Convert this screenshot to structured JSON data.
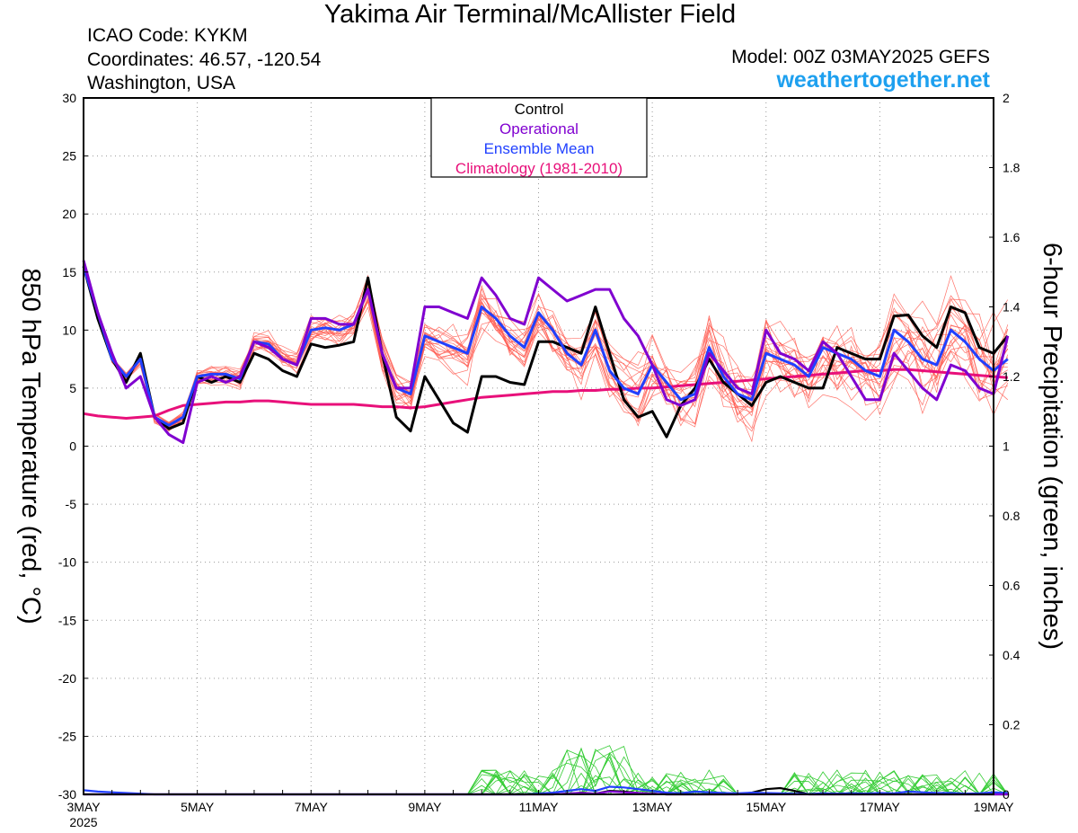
{
  "header": {
    "title": "Yakima Air Terminal/McAllister Field",
    "icao": "ICAO Code: KYKM",
    "coordinates": "Coordinates: 46.57, -120.54",
    "location": "Washington, USA",
    "model": "Model: 00Z 03MAY2025 GEFS",
    "site": "weathertogether.net"
  },
  "colors": {
    "control": "#000000",
    "operational": "#8000d0",
    "ensemble_mean": "#2040ff",
    "climatology": "#e8107a",
    "members": "#ff5a50",
    "precip": "#33cc33",
    "site": "#1ea0ef"
  },
  "chart_data": {
    "type": "line",
    "title": "Yakima Air Terminal/McAllister Field",
    "ylabel": "850 hPa Temperature (red, °C)",
    "y2label": "6-hour Precipitation (green, inches)",
    "ylim": [
      -30,
      30
    ],
    "y2lim": [
      0,
      2
    ],
    "x_range_hours": [
      0,
      384
    ],
    "x_step_hours": 6,
    "yticks": [
      30,
      25,
      20,
      15,
      10,
      5,
      0,
      -5,
      -10,
      -15,
      -20,
      -25,
      -30
    ],
    "y2ticks": [
      "2",
      "1.8",
      "1.6",
      "1.4",
      "1.2",
      "1",
      "0.8",
      "0.6",
      "0.4",
      "0.2",
      "0"
    ],
    "xticks": [
      {
        "hour": 0,
        "label": "3MAY",
        "sub": "2025"
      },
      {
        "hour": 48,
        "label": "5MAY"
      },
      {
        "hour": 96,
        "label": "7MAY"
      },
      {
        "hour": 144,
        "label": "9MAY"
      },
      {
        "hour": 192,
        "label": "11MAY"
      },
      {
        "hour": 240,
        "label": "13MAY"
      },
      {
        "hour": 288,
        "label": "15MAY"
      },
      {
        "hour": 336,
        "label": "17MAY"
      },
      {
        "hour": 384,
        "label": "19MAY"
      }
    ],
    "legend": {
      "placement": "top-center",
      "entries": [
        {
          "label": "Control",
          "color": "#000000"
        },
        {
          "label": "Operational",
          "color": "#8000d0"
        },
        {
          "label": "Ensemble Mean",
          "color": "#2040ff"
        },
        {
          "label": "Climatology (1981-2010)",
          "color": "#e8107a"
        }
      ]
    },
    "grid": "dotted",
    "series": [
      {
        "name": "Control",
        "role": "control",
        "values": [
          15.5,
          11.0,
          7.5,
          5.5,
          8.0,
          2.5,
          1.5,
          2.0,
          6.0,
          5.5,
          6.0,
          5.5,
          8.0,
          7.5,
          6.5,
          6.0,
          8.8,
          8.5,
          8.7,
          9.0,
          14.5,
          8.0,
          2.5,
          1.3,
          6.0,
          4.0,
          2.0,
          1.2,
          6.0,
          6.0,
          5.5,
          5.3,
          9.0,
          9.0,
          8.5,
          8.0,
          12.0,
          8.0,
          4.0,
          2.5,
          3.0,
          0.8,
          3.5,
          5.0,
          7.5,
          5.5,
          4.5,
          3.5,
          5.5,
          6.0,
          5.5,
          5.0,
          5.0,
          8.5,
          8.0,
          7.5,
          7.5,
          11.2,
          11.3,
          9.5,
          8.5,
          12.0,
          11.5,
          8.5,
          8.0,
          9.5
        ]
      },
      {
        "name": "Operational",
        "role": "operational",
        "values": [
          16.0,
          11.5,
          8.0,
          5.0,
          6.0,
          2.5,
          1.0,
          0.3,
          5.5,
          6.0,
          5.5,
          6.0,
          9.0,
          8.5,
          7.5,
          7.0,
          11.0,
          11.0,
          10.5,
          10.5,
          13.5,
          8.0,
          5.0,
          5.0,
          12.0,
          12.0,
          11.5,
          11.0,
          14.5,
          13.0,
          11.0,
          10.5,
          14.5,
          13.5,
          12.5,
          13.0,
          13.5,
          13.5,
          11.0,
          9.5,
          7.0,
          4.0,
          3.5,
          4.0,
          8.0,
          6.5,
          5.0,
          4.5,
          10.0,
          8.0,
          7.5,
          6.5,
          9.0,
          8.0,
          6.0,
          4.0,
          4.0,
          8.0,
          6.5,
          5.0,
          4.0,
          7.0,
          6.5,
          5.0,
          4.5,
          9.5
        ]
      },
      {
        "name": "Ensemble Mean",
        "role": "mean",
        "values": [
          15.5,
          11.5,
          7.5,
          6.0,
          7.5,
          2.5,
          1.8,
          2.5,
          6.0,
          6.2,
          6.2,
          5.8,
          9.0,
          8.8,
          7.5,
          7.0,
          10.0,
          10.2,
          10.0,
          10.5,
          13.5,
          8.0,
          5.0,
          4.5,
          9.5,
          9.0,
          8.5,
          8.0,
          12.0,
          11.0,
          9.5,
          8.5,
          11.5,
          10.0,
          8.0,
          7.0,
          10.0,
          6.5,
          5.0,
          4.5,
          7.0,
          5.5,
          4.0,
          4.5,
          8.5,
          6.0,
          4.5,
          4.0,
          8.0,
          7.5,
          7.0,
          6.0,
          8.5,
          8.0,
          7.5,
          6.5,
          6.0,
          10.0,
          9.0,
          7.5,
          7.0,
          10.0,
          9.0,
          7.5,
          6.5,
          7.5
        ]
      },
      {
        "name": "Climatology (1981-2010)",
        "role": "climo",
        "values": [
          2.8,
          2.6,
          2.5,
          2.4,
          2.5,
          2.6,
          3.1,
          3.5,
          3.6,
          3.7,
          3.8,
          3.8,
          3.9,
          3.9,
          3.8,
          3.7,
          3.6,
          3.6,
          3.6,
          3.6,
          3.5,
          3.4,
          3.4,
          3.3,
          3.4,
          3.6,
          3.8,
          4.0,
          4.2,
          4.3,
          4.4,
          4.5,
          4.6,
          4.7,
          4.7,
          4.8,
          4.8,
          4.9,
          4.9,
          5.0,
          5.0,
          5.1,
          5.2,
          5.3,
          5.4,
          5.5,
          5.6,
          5.7,
          5.8,
          5.9,
          6.0,
          6.1,
          6.2,
          6.3,
          6.4,
          6.5,
          6.5,
          6.6,
          6.6,
          6.5,
          6.4,
          6.3,
          6.2,
          6.1,
          6.0,
          5.9
        ]
      }
    ],
    "precip_series": [
      {
        "name": "Control",
        "role": "control",
        "start_hour": 0,
        "values": [
          0,
          0,
          0,
          0,
          0,
          0,
          0,
          0,
          0,
          0,
          0,
          0,
          0,
          0,
          0,
          0,
          0,
          0,
          0,
          0,
          0,
          0,
          0,
          0,
          0,
          0,
          0,
          0,
          0,
          0,
          0,
          0,
          0,
          0,
          0.002,
          0.005,
          0.002,
          0.01,
          0.008,
          0.004,
          0.002,
          0,
          0,
          0,
          0,
          0,
          0,
          0.005,
          0.015,
          0.018,
          0.01,
          0,
          0,
          0,
          0,
          0,
          0,
          0,
          0,
          0,
          0,
          0,
          0,
          0,
          0,
          0
        ]
      },
      {
        "name": "Ensemble Mean",
        "role": "mean",
        "start_hour": 0,
        "values": [
          0.012,
          0.008,
          0.006,
          0.004,
          0.002,
          0,
          0,
          0,
          0,
          0,
          0,
          0,
          0,
          0,
          0,
          0,
          0,
          0,
          0,
          0,
          0,
          0,
          0,
          0,
          0,
          0,
          0,
          0,
          0,
          0,
          0,
          0,
          0.002,
          0.005,
          0.01,
          0.015,
          0.01,
          0.022,
          0.02,
          0.015,
          0.01,
          0.005,
          0.003,
          0.008,
          0.006,
          0.004,
          0.003,
          0.005,
          0.004,
          0.003,
          0.002,
          0.001,
          0.003,
          0.002,
          0.003,
          0.002,
          0.004,
          0.003,
          0.008,
          0.006,
          0.004,
          0.004,
          0.002,
          0.003,
          0.006,
          0.004
        ]
      },
      {
        "name": "Operational",
        "role": "operational",
        "start_hour": 0,
        "values": [
          0,
          0,
          0,
          0,
          0,
          0,
          0,
          0,
          0,
          0,
          0,
          0,
          0,
          0,
          0,
          0,
          0,
          0,
          0,
          0,
          0,
          0,
          0,
          0,
          0,
          0,
          0,
          0,
          0,
          0,
          0,
          0,
          0,
          0,
          0.002,
          0.004,
          0.002,
          0.008,
          0.006,
          0.004,
          0.002,
          0,
          0,
          0,
          0,
          0,
          0,
          0,
          0,
          0,
          0,
          0,
          0,
          0,
          0,
          0,
          0,
          0,
          0,
          0,
          0,
          0,
          0,
          0,
          0,
          0
        ]
      }
    ],
    "member_temp_spread_note": "",
    "annotation": ""
  }
}
